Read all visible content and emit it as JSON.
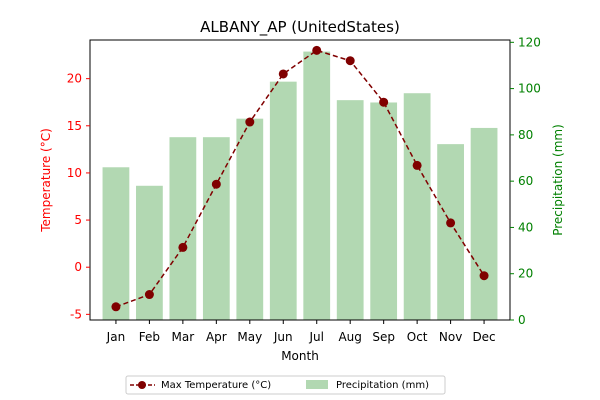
{
  "chart_data": {
    "type": "bar",
    "title": "ALBANY_AP (UnitedStates)",
    "xlabel": "Month",
    "categories": [
      "Jan",
      "Feb",
      "Mar",
      "Apr",
      "May",
      "Jun",
      "Jul",
      "Aug",
      "Sep",
      "Oct",
      "Nov",
      "Dec"
    ],
    "y_left": {
      "label": "Temperature (°C)",
      "color": "#ff0000",
      "ylim": [
        -5.6,
        24.1
      ],
      "ticks": [
        -5,
        0,
        5,
        10,
        15,
        20
      ]
    },
    "y_right": {
      "label": "Precipitation (mm)",
      "color": "#008000",
      "ylim": [
        0,
        121
      ],
      "ticks": [
        0,
        20,
        40,
        60,
        80,
        100,
        120
      ]
    },
    "series": [
      {
        "name": "Max Temperature (°C)",
        "type": "line",
        "axis": "left",
        "color": "#800000",
        "style": "dashed-with-circle-markers",
        "values": [
          -4.2,
          -2.9,
          2.1,
          8.8,
          15.4,
          20.5,
          23.0,
          21.9,
          17.5,
          10.8,
          4.7,
          -0.9
        ]
      },
      {
        "name": "Precipitation (mm)",
        "type": "bar",
        "axis": "right",
        "color": "#b2d8b2",
        "values": [
          66,
          58,
          79,
          79,
          87,
          103,
          116,
          95,
          94,
          98,
          76,
          83
        ]
      }
    ],
    "legend_position": "bottom-center",
    "grid": false
  }
}
